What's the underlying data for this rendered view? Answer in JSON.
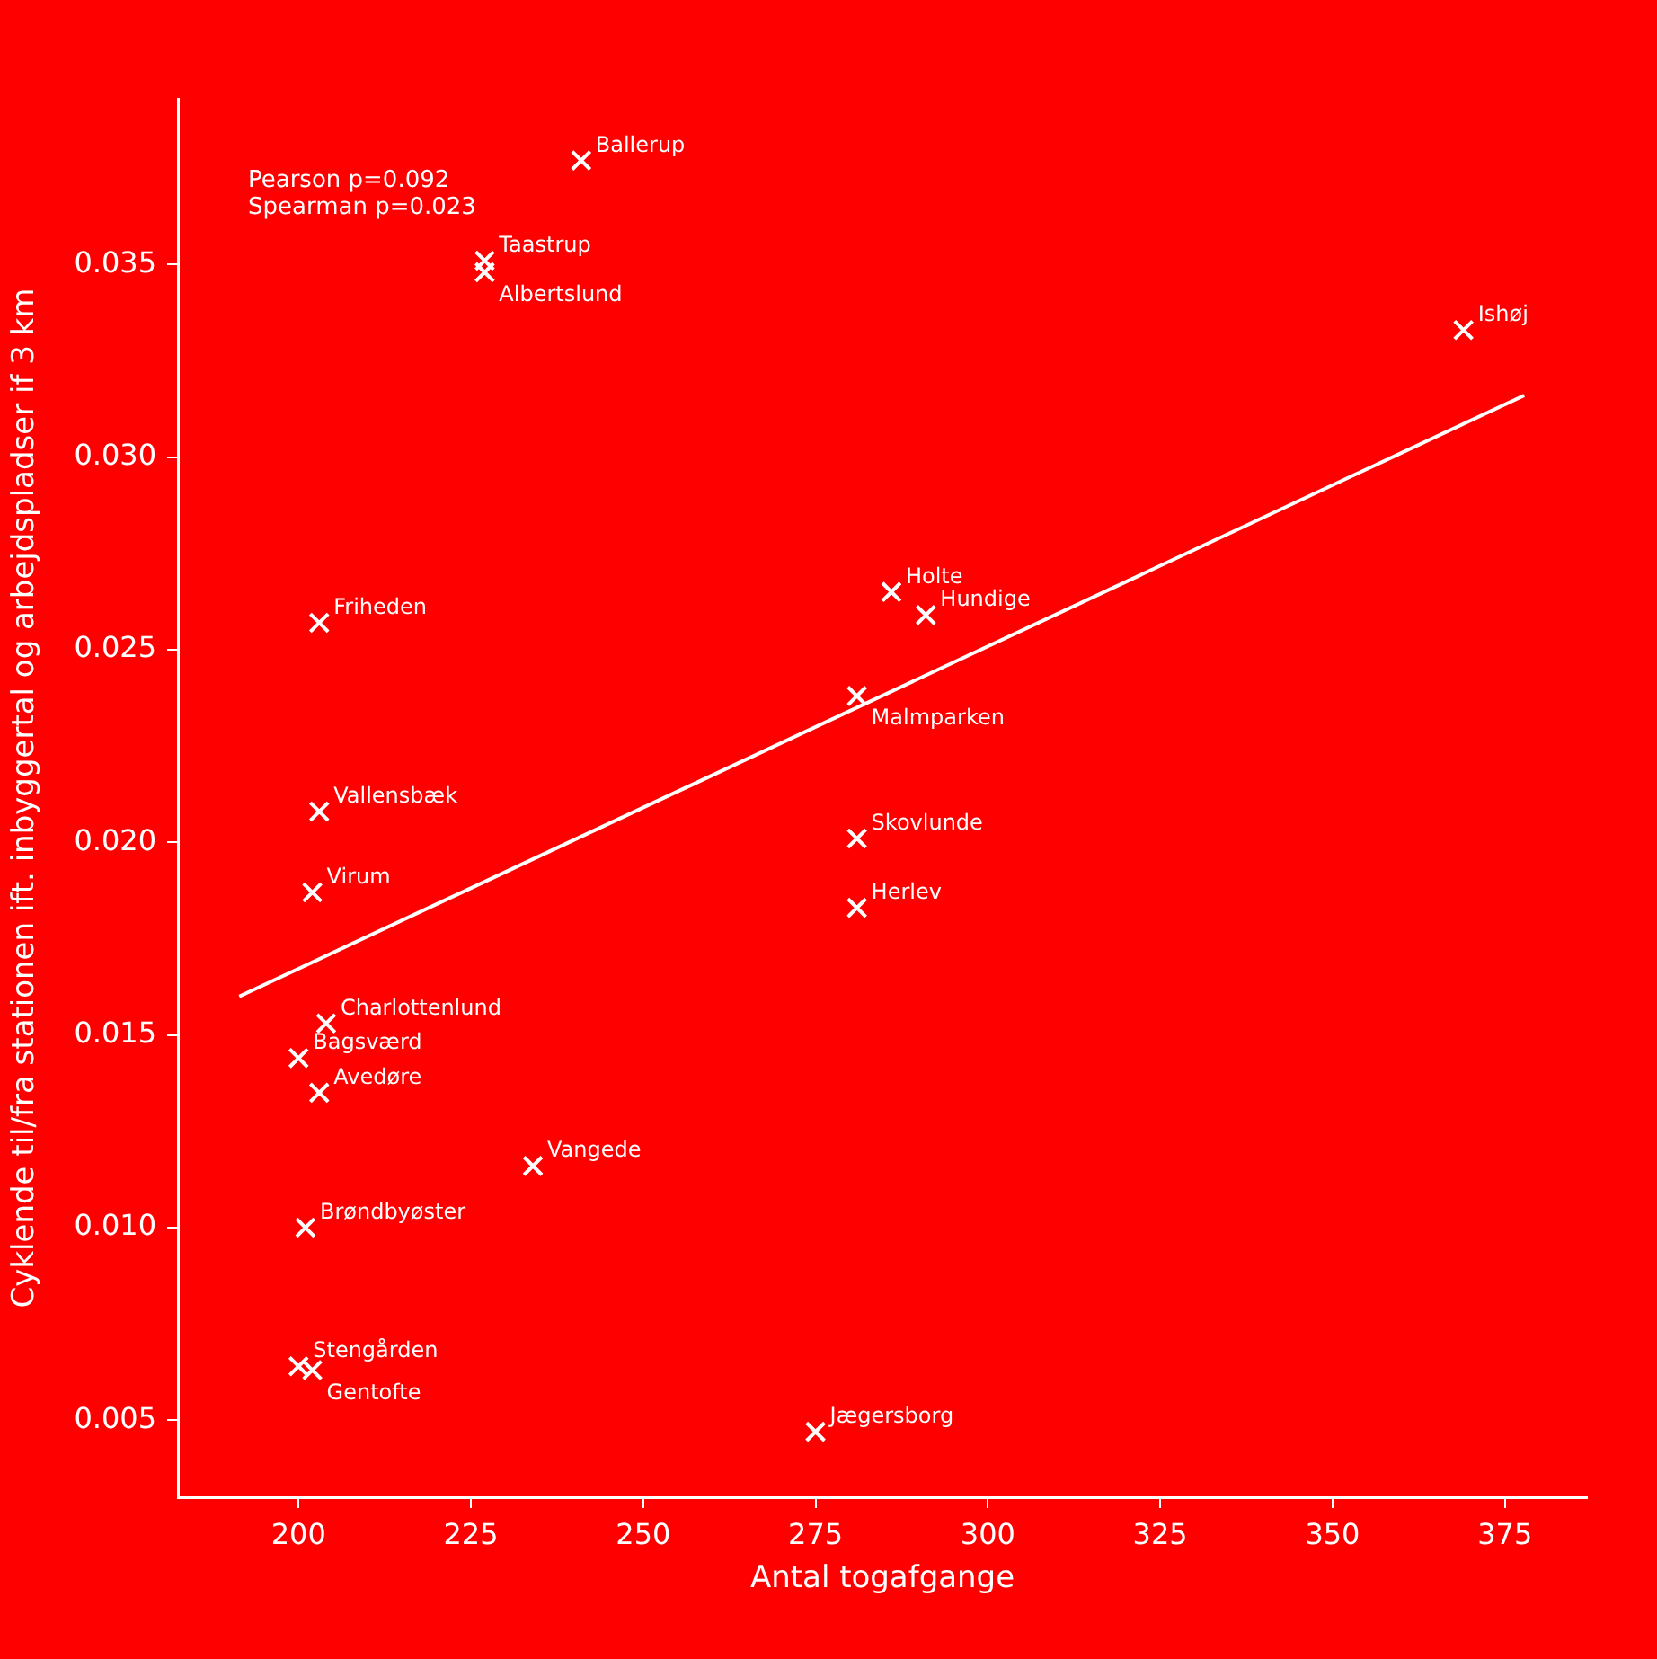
{
  "chart_data": {
    "type": "scatter",
    "xlabel": "Antal togafgange",
    "ylabel": "Cyklende til/fra stationen ift. inbyggertal og arbejdspladser if 3 km",
    "xlim": [
      182.5,
      386.9
    ],
    "ylim": [
      0.003,
      0.0393
    ],
    "xticks": [
      200,
      225,
      250,
      275,
      300,
      325,
      350,
      375
    ],
    "yticks": [
      {
        "value": 0.005,
        "label": "0.005"
      },
      {
        "value": 0.01,
        "label": "0.010"
      },
      {
        "value": 0.015,
        "label": "0.015"
      },
      {
        "value": 0.02,
        "label": "0.020"
      },
      {
        "value": 0.025,
        "label": "0.025"
      },
      {
        "value": 0.03,
        "label": "0.030"
      },
      {
        "value": 0.035,
        "label": "0.035"
      }
    ],
    "grid": false,
    "legend": false,
    "series": [
      {
        "marker": "cross",
        "color": "#ffffff",
        "x": [
          241,
          227,
          227,
          369,
          286,
          291,
          203,
          281,
          203,
          281,
          202,
          281,
          204,
          200,
          203,
          234,
          201,
          200,
          202,
          275
        ],
        "values": [
          0.0377,
          0.0351,
          0.0348,
          0.0333,
          0.0265,
          0.0259,
          0.0257,
          0.0238,
          0.0208,
          0.0201,
          0.0187,
          0.0183,
          0.0153,
          0.0144,
          0.0135,
          0.0116,
          0.01,
          0.0064,
          0.0063,
          0.0047
        ]
      },
      {
        "type": "line",
        "marker": "none",
        "color": "#ffffff",
        "x": [
          191.4,
          377.8
        ],
        "values": [
          0.016,
          0.0316
        ]
      }
    ],
    "annotations": [
      "Pearson p=0.092",
      "Spearman p=0.023",
      {
        "text": "Ballerup",
        "x": 241,
        "y": 0.0377
      },
      {
        "text": "Taastrup",
        "x": 227,
        "y": 0.0351
      },
      {
        "text": "Albertslund",
        "x": 227,
        "y": 0.0348
      },
      {
        "text": "Ishøj",
        "x": 369,
        "y": 0.0333
      },
      {
        "text": "Holte",
        "x": 286,
        "y": 0.0265
      },
      {
        "text": "Hundige",
        "x": 291,
        "y": 0.0259
      },
      {
        "text": "Friheden",
        "x": 203,
        "y": 0.0257
      },
      {
        "text": "Malmparken",
        "x": 281,
        "y": 0.0238
      },
      {
        "text": "Vallensbæk",
        "x": 203,
        "y": 0.0208
      },
      {
        "text": "Skovlunde",
        "x": 281,
        "y": 0.0201
      },
      {
        "text": "Virum",
        "x": 202,
        "y": 0.0187
      },
      {
        "text": "Herlev",
        "x": 281,
        "y": 0.0183
      },
      {
        "text": "Charlottenlund",
        "x": 204,
        "y": 0.0153
      },
      {
        "text": "Bagsværd",
        "x": 200,
        "y": 0.0144
      },
      {
        "text": "Avedøre",
        "x": 203,
        "y": 0.0135
      },
      {
        "text": "Vangede",
        "x": 234,
        "y": 0.0116
      },
      {
        "text": "Brøndbyøster",
        "x": 201,
        "y": 0.01
      },
      {
        "text": "Stengården",
        "x": 200,
        "y": 0.0064
      },
      {
        "text": "Gentofte",
        "x": 202,
        "y": 0.0063
      },
      {
        "text": "Jægersborg",
        "x": 275,
        "y": 0.0047
      }
    ]
  }
}
